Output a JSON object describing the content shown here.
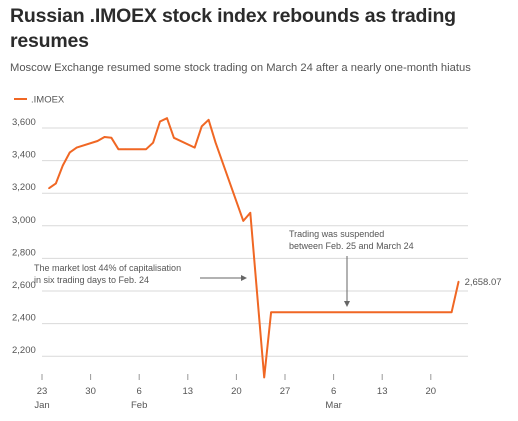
{
  "title": "Russian .IMOEX stock index rebounds as trading resumes",
  "subtitle": "Moscow Exchange resumed some stock trading on March 24 after a nearly one-month hiatus",
  "chart_data": {
    "type": "line",
    "title": "Russian .IMOEX stock index rebounds as trading resumes",
    "subtitle": "Moscow Exchange resumed some stock trading on March 24 after a nearly one-month hiatus",
    "xlabel": "",
    "ylabel": "",
    "ylim": [
      2050,
      3700
    ],
    "grid": "horizontal",
    "legend": "top-left",
    "x_start_date": "2022-01-23",
    "y_ticks": [
      2200,
      2400,
      2600,
      2800,
      3000,
      3200,
      3400,
      3600
    ],
    "y_tick_labels": [
      "2,200",
      "2,400",
      "2,600",
      "2,800",
      "3,000",
      "3,200",
      "3,400",
      "3,600"
    ],
    "x_ticks": [
      {
        "date": "2022-01-23",
        "label": "23",
        "sub": "Jan"
      },
      {
        "date": "2022-01-30",
        "label": "30",
        "sub": ""
      },
      {
        "date": "2022-02-06",
        "label": "6",
        "sub": "Feb"
      },
      {
        "date": "2022-02-13",
        "label": "13",
        "sub": ""
      },
      {
        "date": "2022-02-20",
        "label": "20",
        "sub": ""
      },
      {
        "date": "2022-02-27",
        "label": "27",
        "sub": ""
      },
      {
        "date": "2022-03-06",
        "label": "6",
        "sub": "Mar"
      },
      {
        "date": "2022-03-13",
        "label": "13",
        "sub": ""
      },
      {
        "date": "2022-03-20",
        "label": "20",
        "sub": ""
      }
    ],
    "series": [
      {
        "name": ".IMOEX",
        "color": "#f06724",
        "points": [
          [
            "2022-01-24",
            3230
          ],
          [
            "2022-01-25",
            3260
          ],
          [
            "2022-01-26",
            3370
          ],
          [
            "2022-01-27",
            3450
          ],
          [
            "2022-01-28",
            3480
          ],
          [
            "2022-01-31",
            3520
          ],
          [
            "2022-02-01",
            3545
          ],
          [
            "2022-02-02",
            3540
          ],
          [
            "2022-02-03",
            3470
          ],
          [
            "2022-02-04",
            3470
          ],
          [
            "2022-02-07",
            3470
          ],
          [
            "2022-02-08",
            3510
          ],
          [
            "2022-02-09",
            3640
          ],
          [
            "2022-02-10",
            3660
          ],
          [
            "2022-02-11",
            3540
          ],
          [
            "2022-02-14",
            3480
          ],
          [
            "2022-02-15",
            3610
          ],
          [
            "2022-02-16",
            3650
          ],
          [
            "2022-02-17",
            3510
          ],
          [
            "2022-02-18",
            3390
          ],
          [
            "2022-02-21",
            3030
          ],
          [
            "2022-02-22",
            3080
          ],
          [
            "2022-02-24",
            2070
          ],
          [
            "2022-02-25",
            2470
          ],
          [
            "2022-03-23",
            2470
          ],
          [
            "2022-03-24",
            2658.07
          ]
        ]
      }
    ],
    "end_label": "2,658.07",
    "annotations": [
      {
        "text": [
          "The market lost 44% of capitalisation",
          "in six trading days to Feb. 24"
        ]
      },
      {
        "text": [
          "Trading was suspended",
          "between Feb. 25 and March 24"
        ]
      }
    ]
  }
}
